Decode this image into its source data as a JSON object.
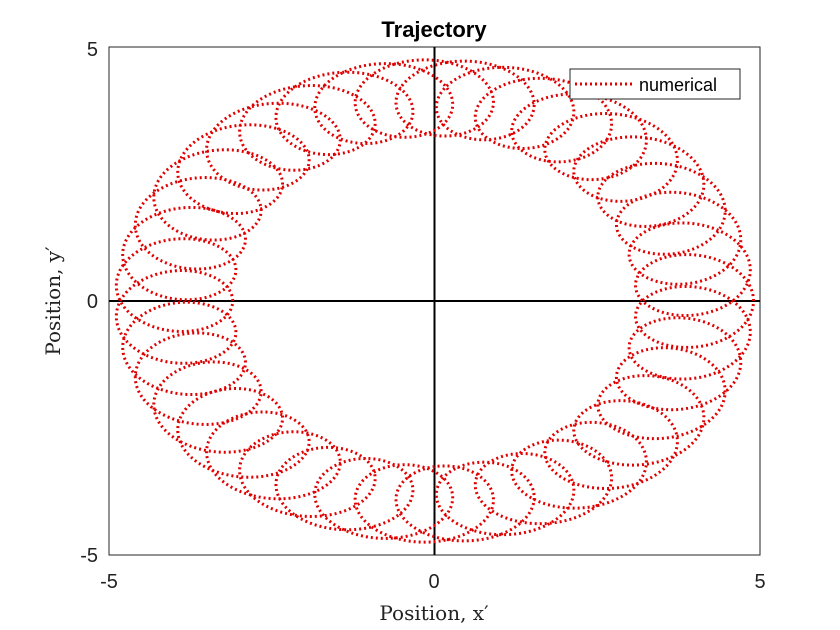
{
  "chart_data": {
    "type": "line",
    "title": "Trajectory",
    "xlabel": "Position, x′",
    "ylabel": "Position, y′",
    "xlim": [
      -5,
      5
    ],
    "ylim": [
      -5,
      5
    ],
    "xticks": [
      "-5",
      "0",
      "5"
    ],
    "yticks": [
      "-5",
      "0",
      "5"
    ],
    "grid": false,
    "zero_lines": true,
    "legend_position": "top-right",
    "series": [
      {
        "name": "numerical",
        "color": "#e00000",
        "line_style": "dotted",
        "shape": "epicycloid-like loops along a ring",
        "ring_radius": 4.0,
        "loop_radius_x": 0.9,
        "loop_radius_y": 0.75,
        "loop_count": 40
      }
    ]
  }
}
